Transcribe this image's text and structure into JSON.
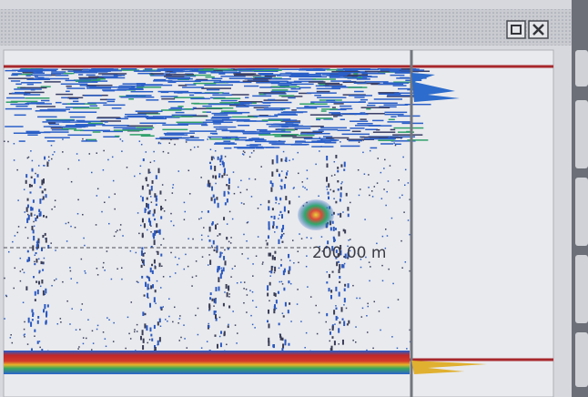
{
  "echogram": {
    "depth_marker": "200.00 m"
  }
}
